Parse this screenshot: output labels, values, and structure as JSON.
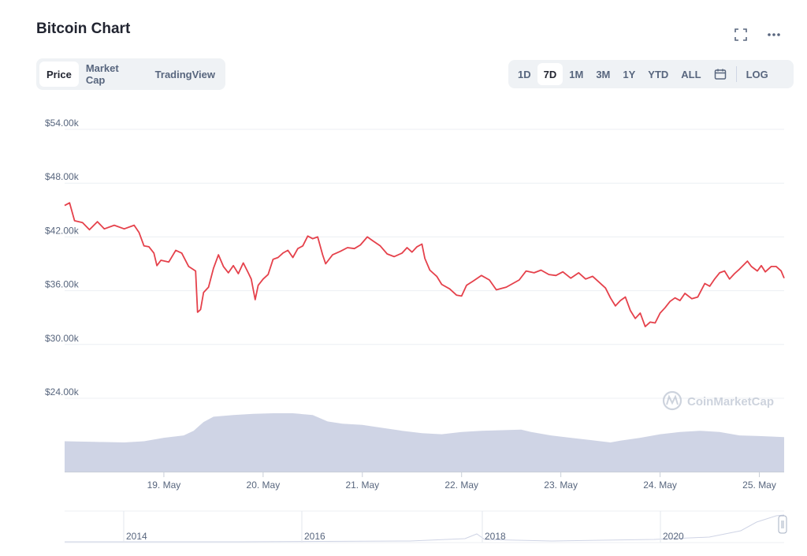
{
  "header": {
    "title": "Bitcoin Chart",
    "fullscreen_icon": "fullscreen-icon",
    "more_icon": "more-icon"
  },
  "tabs": [
    {
      "label": "Price",
      "active": true
    },
    {
      "label": "Market Cap",
      "active": false
    },
    {
      "label": "TradingView",
      "active": false
    }
  ],
  "ranges": [
    {
      "label": "1D",
      "active": false
    },
    {
      "label": "7D",
      "active": true
    },
    {
      "label": "1M",
      "active": false
    },
    {
      "label": "3M",
      "active": false
    },
    {
      "label": "1Y",
      "active": false
    },
    {
      "label": "YTD",
      "active": false
    },
    {
      "label": "ALL",
      "active": false
    }
  ],
  "calendar_icon": "calendar-icon",
  "log_label": "LOG",
  "watermark": "CoinMarketCap",
  "colors": {
    "price_line": "#e5414b",
    "volume_fill": "#cfd4e5",
    "grid": "#eceff3",
    "axis_text": "#58667e",
    "text": "#222531"
  },
  "chart_data": {
    "type": "line",
    "title": "",
    "xlabel": "",
    "ylabel": "",
    "y_ticks": [
      "$54.00k",
      "$48.00k",
      "$42.00k",
      "$36.00k",
      "$30.00k",
      "$24.00k"
    ],
    "y_tick_values": [
      54000,
      48000,
      42000,
      36000,
      30000,
      24000
    ],
    "ylim": [
      24000,
      54000
    ],
    "x_ticks": [
      "19. May",
      "20. May",
      "21. May",
      "22. May",
      "23. May",
      "24. May",
      "25. May"
    ],
    "x_tick_values": [
      1.0,
      2.0,
      3.0,
      4.0,
      5.0,
      6.0,
      7.0
    ],
    "xlim": [
      0.0,
      7.25
    ],
    "grid": true,
    "series": [
      {
        "values": [
          [
            0.0,
            45500
          ],
          [
            0.05,
            45800
          ],
          [
            0.1,
            43800
          ],
          [
            0.18,
            43600
          ],
          [
            0.25,
            42800
          ],
          [
            0.33,
            43700
          ],
          [
            0.4,
            42900
          ],
          [
            0.5,
            43300
          ],
          [
            0.6,
            42900
          ],
          [
            0.7,
            43300
          ],
          [
            0.75,
            42500
          ],
          [
            0.8,
            41000
          ],
          [
            0.85,
            40900
          ],
          [
            0.9,
            40200
          ],
          [
            0.93,
            38800
          ],
          [
            0.97,
            39400
          ],
          [
            1.05,
            39200
          ],
          [
            1.12,
            40500
          ],
          [
            1.18,
            40200
          ],
          [
            1.25,
            38700
          ],
          [
            1.32,
            38200
          ],
          [
            1.34,
            33600
          ],
          [
            1.37,
            33900
          ],
          [
            1.4,
            35800
          ],
          [
            1.45,
            36400
          ],
          [
            1.5,
            38500
          ],
          [
            1.55,
            40000
          ],
          [
            1.6,
            38700
          ],
          [
            1.65,
            38000
          ],
          [
            1.7,
            38800
          ],
          [
            1.75,
            37900
          ],
          [
            1.8,
            39100
          ],
          [
            1.85,
            38000
          ],
          [
            1.88,
            37300
          ],
          [
            1.92,
            35000
          ],
          [
            1.95,
            36600
          ],
          [
            2.0,
            37300
          ],
          [
            2.05,
            37800
          ],
          [
            2.1,
            39500
          ],
          [
            2.15,
            39700
          ],
          [
            2.2,
            40200
          ],
          [
            2.25,
            40500
          ],
          [
            2.3,
            39700
          ],
          [
            2.35,
            40700
          ],
          [
            2.4,
            41000
          ],
          [
            2.45,
            42100
          ],
          [
            2.5,
            41800
          ],
          [
            2.55,
            42000
          ],
          [
            2.6,
            40000
          ],
          [
            2.63,
            39000
          ],
          [
            2.7,
            40000
          ],
          [
            2.78,
            40400
          ],
          [
            2.85,
            40800
          ],
          [
            2.92,
            40700
          ],
          [
            2.98,
            41100
          ],
          [
            3.05,
            42000
          ],
          [
            3.1,
            41600
          ],
          [
            3.18,
            41000
          ],
          [
            3.25,
            40100
          ],
          [
            3.32,
            39800
          ],
          [
            3.4,
            40200
          ],
          [
            3.45,
            40800
          ],
          [
            3.5,
            40300
          ],
          [
            3.55,
            40900
          ],
          [
            3.6,
            41200
          ],
          [
            3.63,
            39600
          ],
          [
            3.68,
            38300
          ],
          [
            3.75,
            37600
          ],
          [
            3.8,
            36700
          ],
          [
            3.88,
            36200
          ],
          [
            3.95,
            35500
          ],
          [
            4.0,
            35400
          ],
          [
            4.05,
            36600
          ],
          [
            4.12,
            37100
          ],
          [
            4.2,
            37700
          ],
          [
            4.28,
            37200
          ],
          [
            4.35,
            36100
          ],
          [
            4.45,
            36400
          ],
          [
            4.5,
            36700
          ],
          [
            4.58,
            37200
          ],
          [
            4.65,
            38200
          ],
          [
            4.73,
            38000
          ],
          [
            4.8,
            38300
          ],
          [
            4.88,
            37800
          ],
          [
            4.95,
            37700
          ],
          [
            5.02,
            38100
          ],
          [
            5.1,
            37400
          ],
          [
            5.18,
            38000
          ],
          [
            5.25,
            37300
          ],
          [
            5.32,
            37600
          ],
          [
            5.38,
            37000
          ],
          [
            5.45,
            36300
          ],
          [
            5.5,
            35200
          ],
          [
            5.55,
            34300
          ],
          [
            5.6,
            34900
          ],
          [
            5.65,
            35300
          ],
          [
            5.7,
            33800
          ],
          [
            5.75,
            32900
          ],
          [
            5.8,
            33500
          ],
          [
            5.85,
            32000
          ],
          [
            5.9,
            32500
          ],
          [
            5.95,
            32400
          ],
          [
            6.0,
            33500
          ],
          [
            6.05,
            34100
          ],
          [
            6.1,
            34800
          ],
          [
            6.15,
            35200
          ],
          [
            6.2,
            34900
          ],
          [
            6.25,
            35700
          ],
          [
            6.32,
            35100
          ],
          [
            6.38,
            35300
          ],
          [
            6.45,
            36800
          ],
          [
            6.5,
            36500
          ],
          [
            6.55,
            37300
          ],
          [
            6.6,
            38000
          ],
          [
            6.65,
            38200
          ],
          [
            6.7,
            37300
          ],
          [
            6.75,
            37900
          ],
          [
            6.8,
            38400
          ],
          [
            6.88,
            39300
          ],
          [
            6.92,
            38700
          ],
          [
            6.98,
            38200
          ],
          [
            7.02,
            38800
          ],
          [
            7.06,
            38100
          ],
          [
            7.12,
            38700
          ],
          [
            7.17,
            38700
          ],
          [
            7.22,
            38200
          ],
          [
            7.25,
            37400
          ]
        ]
      }
    ],
    "volume": [
      [
        0.0,
        0.52
      ],
      [
        0.3,
        0.51
      ],
      [
        0.6,
        0.5
      ],
      [
        0.8,
        0.52
      ],
      [
        1.0,
        0.58
      ],
      [
        1.2,
        0.62
      ],
      [
        1.3,
        0.7
      ],
      [
        1.4,
        0.85
      ],
      [
        1.5,
        0.94
      ],
      [
        1.7,
        0.97
      ],
      [
        1.9,
        0.99
      ],
      [
        2.1,
        1.0
      ],
      [
        2.3,
        1.0
      ],
      [
        2.5,
        0.97
      ],
      [
        2.65,
        0.86
      ],
      [
        2.8,
        0.82
      ],
      [
        3.0,
        0.8
      ],
      [
        3.2,
        0.75
      ],
      [
        3.4,
        0.7
      ],
      [
        3.6,
        0.66
      ],
      [
        3.8,
        0.64
      ],
      [
        4.0,
        0.68
      ],
      [
        4.2,
        0.7
      ],
      [
        4.4,
        0.71
      ],
      [
        4.6,
        0.72
      ],
      [
        4.7,
        0.68
      ],
      [
        4.9,
        0.62
      ],
      [
        5.1,
        0.58
      ],
      [
        5.3,
        0.54
      ],
      [
        5.5,
        0.5
      ],
      [
        5.6,
        0.53
      ],
      [
        5.8,
        0.58
      ],
      [
        6.0,
        0.64
      ],
      [
        6.2,
        0.68
      ],
      [
        6.4,
        0.7
      ],
      [
        6.6,
        0.68
      ],
      [
        6.8,
        0.62
      ],
      [
        7.0,
        0.61
      ],
      [
        7.25,
        0.59
      ]
    ],
    "navigator": {
      "ticks": [
        "2014",
        "2016",
        "2018",
        "2020"
      ]
    }
  }
}
